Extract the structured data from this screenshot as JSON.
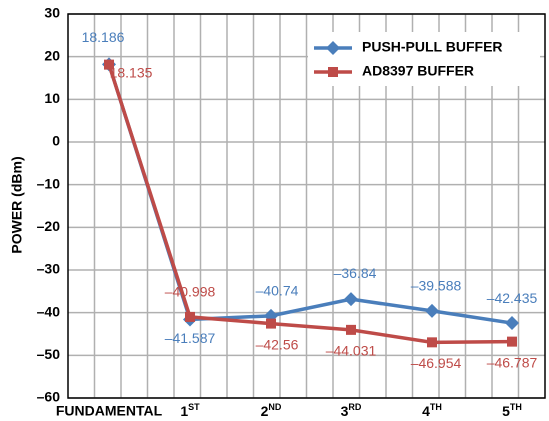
{
  "chart_data": {
    "type": "line",
    "y_label": "POWER (dBm)",
    "categories": [
      "FUNDAMENTAL",
      "1ST",
      "2ND",
      "3RD",
      "4TH",
      "5TH"
    ],
    "series": [
      {
        "name": "PUSH-PULL BUFFER",
        "color": "#4a7ebb",
        "marker": "diamond",
        "values": [
          18.186,
          -41.587,
          -40.74,
          -36.84,
          -39.588,
          -42.435
        ],
        "value_labels": [
          "18.186",
          "–41.587",
          "–40.74",
          "–36.84",
          "–39.588",
          "–42.435"
        ]
      },
      {
        "name": "AD8397 BUFFER",
        "color": "#be4b48",
        "marker": "square",
        "values": [
          18.135,
          -40.998,
          -42.56,
          -44.031,
          -46.954,
          -46.787
        ],
        "value_labels": [
          "18.135",
          "–40.998",
          "–42.56",
          "–44.031",
          "–46.954",
          "–46.787"
        ]
      }
    ],
    "ylim": [
      -60,
      30
    ],
    "yticks": [
      30,
      20,
      10,
      0,
      {
        "value": -10,
        "label": "–10"
      },
      {
        "value": -20,
        "label": "–20"
      },
      {
        "value": -30,
        "label": "–30"
      },
      {
        "value": -40,
        "label": "–40"
      },
      {
        "value": -50,
        "label": "–50"
      },
      {
        "value": -60,
        "label": "–60"
      }
    ],
    "grid": true,
    "legend": "upper right"
  }
}
